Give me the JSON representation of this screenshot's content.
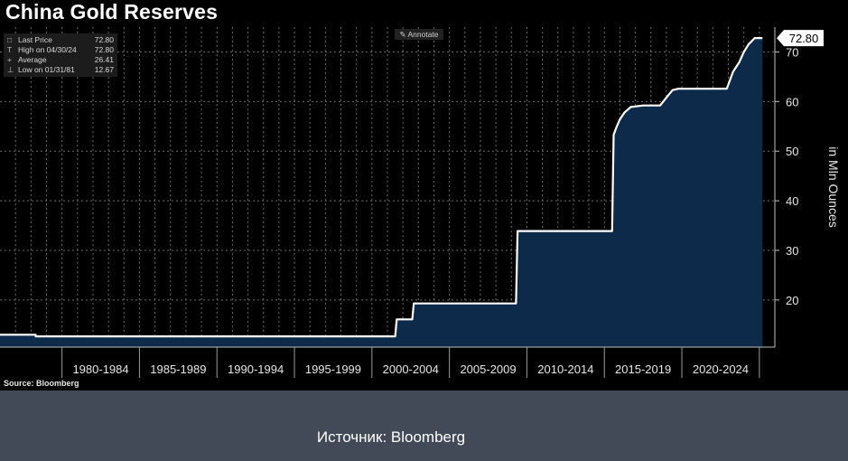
{
  "title": "China Gold Reserves",
  "legend": {
    "rows": [
      {
        "mark": "□",
        "label": "Last Price",
        "value": "72.80"
      },
      {
        "mark": "T",
        "label": "High on 04/30/24",
        "value": "72.80"
      },
      {
        "mark": "+",
        "label": "Average",
        "value": "26.41"
      },
      {
        "mark": "⊥",
        "label": "Low on 01/31/81",
        "value": "12.67"
      }
    ]
  },
  "annotate": {
    "icon": "pencil-icon",
    "label": "Annotate"
  },
  "last_price_label": "72.80",
  "source": "Source: Bloomberg",
  "caption": "Источник: Bloomberg",
  "colors": {
    "background": "#000000",
    "fill": "#0d2a4a",
    "line": "#ffffff",
    "grid": "#6b6b6b",
    "page": "#424a58"
  },
  "chart_data": {
    "type": "area",
    "title": "China Gold Reserves",
    "ylabel": "in Mln Ounces",
    "xlabel": "",
    "y_axis_position": "right",
    "ylim": [
      10.5,
      75
    ],
    "xlim": [
      1976.0,
      2026.0
    ],
    "yticks": [
      20,
      30,
      40,
      50,
      60,
      70
    ],
    "x_categories": [
      "1980-1984",
      "1985-1989",
      "1990-1994",
      "1995-1999",
      "2000-2004",
      "2005-2009",
      "2010-2014",
      "2015-2019",
      "2020-2024"
    ],
    "grid": true,
    "series": [
      {
        "name": "Last Price",
        "x": [
          1976.0,
          1978.3,
          1978.3,
          2001.5,
          2001.6,
          2002.6,
          2002.7,
          2009.3,
          2009.4,
          2015.5,
          2015.6,
          2015.8,
          2016.0,
          2016.3,
          2016.7,
          2017.5,
          2018.6,
          2019.0,
          2019.4,
          2019.8,
          2022.9,
          2023.3,
          2023.7,
          2024.0,
          2024.3,
          2024.7,
          2025.2
        ],
        "y": [
          13.0,
          13.0,
          12.67,
          12.67,
          16.1,
          16.1,
          19.3,
          19.3,
          33.9,
          33.9,
          53.3,
          55.0,
          56.4,
          57.8,
          58.9,
          59.2,
          59.2,
          60.8,
          62.3,
          62.6,
          62.6,
          66.0,
          67.9,
          70.0,
          71.5,
          72.8,
          72.8
        ]
      }
    ],
    "last_value": 72.8
  }
}
